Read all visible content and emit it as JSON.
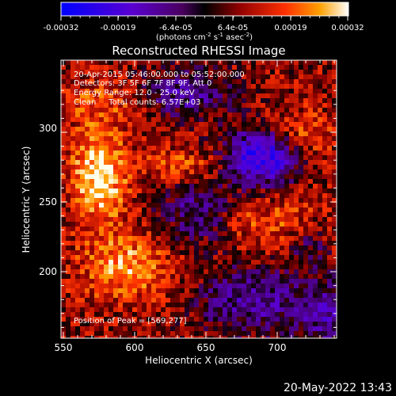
{
  "colorbar": {
    "tick_labels": [
      "-0.00032",
      "-0.00019",
      "-6.4e-05",
      "6.4e-05",
      "0.00019",
      "0.00032"
    ],
    "unit_main": "(photons cm",
    "unit_exp1": "-2",
    "unit_s": " s",
    "unit_exp2": "-1",
    "unit_asec": " asec",
    "unit_exp3": "-2",
    "unit_close": ")",
    "range": [
      -0.00032,
      0.00032
    ]
  },
  "plot": {
    "title": "Reconstructed RHESSI Image",
    "info_lines": [
      "20-Apr-2015 05:46:00.000 to 05:52:00.000",
      "Detectors: 3F 5F 6F 7F 8F 9F, Att 0",
      "Energy Range: 12.0 - 25.0 keV",
      "Clean     Total counts: 6.57E+03"
    ],
    "peak_label": "Position of Peak = [569,277]",
    "xlabel": "Heliocentric X (arcsec)",
    "ylabel": "Heliocentric Y (arcsec)",
    "xticks": [
      "550",
      "600",
      "650",
      "700"
    ],
    "yticks": [
      "200",
      "250",
      "300"
    ],
    "xlim": [
      547,
      741
    ],
    "ylim": [
      155,
      332
    ]
  },
  "footer": {
    "timestamp": "20-May-2022 13:43"
  },
  "colors": {
    "background": "#000000",
    "foreground": "#ffffff"
  }
}
